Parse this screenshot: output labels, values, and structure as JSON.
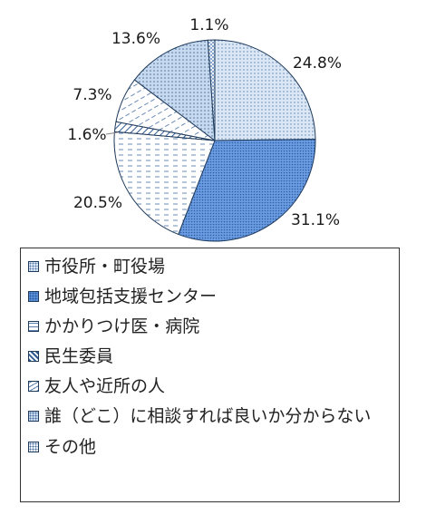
{
  "chart_data": {
    "type": "pie",
    "start_angle_deg": 90,
    "direction": "clockwise",
    "categories": [
      "市役所・町役場",
      "地域包括支援センター",
      "かかりつけ医・病院",
      "民生委員",
      "友人や近所の人",
      "誰（どこ）に相談すれば良いか分からない",
      "その他"
    ],
    "values": [
      24.8,
      31.1,
      20.5,
      1.6,
      7.3,
      13.6,
      1.1
    ],
    "data_labels": [
      "24.8%",
      "31.1%",
      "20.5%",
      "1.6%",
      "7.3%",
      "13.6%",
      "1.1%"
    ],
    "legend_position": "bottom",
    "slices": [
      {
        "fill": "#dbe7f5",
        "pattern": "dots-fine",
        "ink": "#5a7fae"
      },
      {
        "fill": "#5b8fd6",
        "pattern": "dots-dense",
        "ink": "#2a5ea8"
      },
      {
        "fill": "#ffffff",
        "pattern": "dashes-horizontal",
        "ink": "#5a7fae"
      },
      {
        "fill": "#ffffff",
        "pattern": "diagonal-wide",
        "ink": "#2e5a93"
      },
      {
        "fill": "#ffffff",
        "pattern": "dashes-diagonal",
        "ink": "#5a7fae"
      },
      {
        "fill": "#c7d9ee",
        "pattern": "dots-grid",
        "ink": "#4a6f9e"
      },
      {
        "fill": "#eef3fa",
        "pattern": "checker",
        "ink": "#4a6f9e"
      }
    ]
  },
  "legend": {
    "items": [
      {
        "label": "市役所・町役場"
      },
      {
        "label": "地域包括支援センター"
      },
      {
        "label": "かかりつけ医・病院"
      },
      {
        "label": "民生委員"
      },
      {
        "label": "友人や近所の人"
      },
      {
        "label": "誰（どこ）に相談すれば良いか分からない"
      },
      {
        "label": "その他"
      }
    ]
  }
}
